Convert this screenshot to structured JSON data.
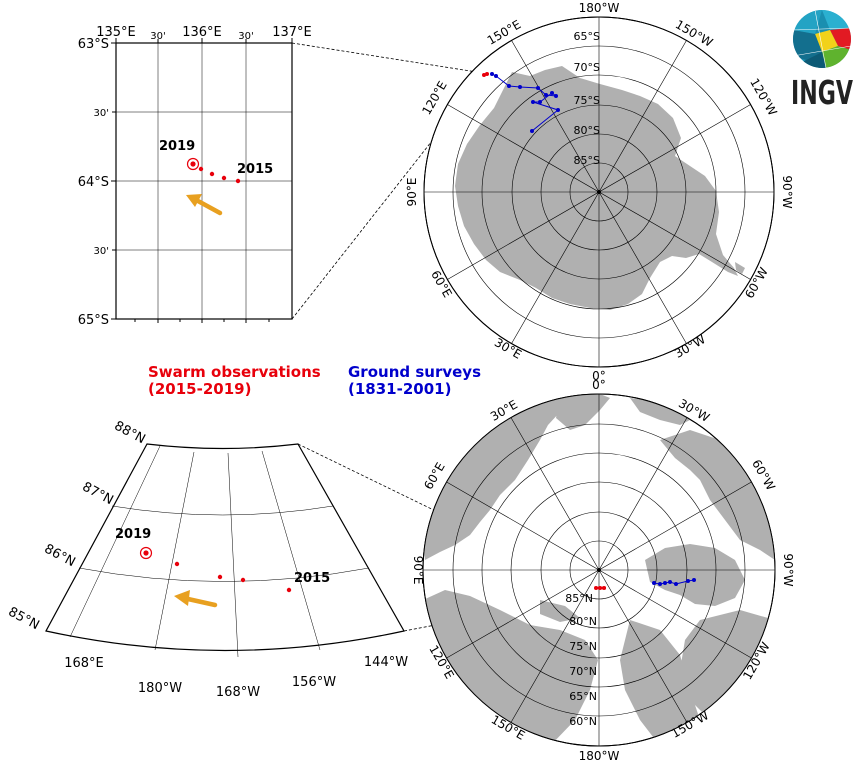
{
  "logo": {
    "text": "INGV"
  },
  "legend": {
    "swarm_line1": "Swarm observations",
    "swarm_line2": "(2015-2019)",
    "ground_line1": "Ground surveys",
    "ground_line2": "(1831-2001)"
  },
  "colors": {
    "swarm": "#e8000b",
    "ground": "#0000cc",
    "land": "#b0b0b0",
    "arrow": "#e8a020"
  },
  "south_inset": {
    "lon_ticks": [
      "135°E",
      "30'",
      "136°E",
      "30'",
      "137°E"
    ],
    "lat_ticks": [
      "63°S",
      "30'",
      "64°S",
      "30'",
      "65°S"
    ],
    "year_start": "2019",
    "year_end": "2015"
  },
  "south_polar": {
    "lon_labels": [
      "180°W",
      "150°W",
      "120°W",
      "90°W",
      "60°W",
      "30°W",
      "0°",
      "30°E",
      "60°E",
      "90°E",
      "120°E",
      "150°E"
    ],
    "lat_labels": [
      "65°S",
      "70°S",
      "75°S",
      "80°S",
      "85°S"
    ]
  },
  "north_inset": {
    "lat_ticks": [
      "88°N",
      "87°N",
      "86°N",
      "85°N"
    ],
    "lon_ticks": [
      "168°E",
      "180°W",
      "168°W",
      "156°W",
      "144°W"
    ],
    "year_start": "2019",
    "year_end": "2015"
  },
  "north_polar": {
    "lon_labels": [
      "0°",
      "30°W",
      "60°W",
      "90°W",
      "120°W",
      "150°W",
      "180°W",
      "150°E",
      "120°E",
      "90°E",
      "60°E",
      "30°E"
    ],
    "lat_labels": [
      "85°N",
      "80°N",
      "75°N",
      "70°N",
      "65°N",
      "60°N"
    ]
  }
}
